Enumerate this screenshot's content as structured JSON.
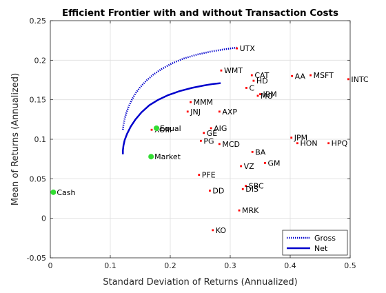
{
  "chart_data": {
    "type": "scatter",
    "title": "Efficient Frontier with and without Transaction Costs",
    "xlabel": "Standard Deviation of Returns (Annualized)",
    "ylabel": "Mean of Returns (Annualized)",
    "xlim": [
      0,
      0.5
    ],
    "ylim": [
      -0.05,
      0.25
    ],
    "x_ticks": [
      0,
      0.1,
      0.2,
      0.3,
      0.4,
      0.5
    ],
    "x_tick_labels": [
      "0",
      "0.1",
      "0.2",
      "0.3",
      "0.4",
      "0.5"
    ],
    "y_ticks": [
      -0.05,
      0,
      0.05,
      0.1,
      0.15,
      0.2,
      0.25
    ],
    "y_tick_labels": [
      "-0.05",
      "0",
      "0.05",
      "0.1",
      "0.15",
      "0.2",
      "0.25"
    ],
    "grid": true,
    "legend_position": "bottom-right",
    "colors": {
      "assets": "#ff0000",
      "special": "#33dd33",
      "frontier": "#0000cc",
      "grid": "#dedede",
      "axis": "#262626"
    },
    "frontiers": [
      {
        "name": "Gross",
        "style": "dotted",
        "points": [
          [
            0.121,
            0.112
          ],
          [
            0.122,
            0.118
          ],
          [
            0.124,
            0.126
          ],
          [
            0.127,
            0.134
          ],
          [
            0.131,
            0.142
          ],
          [
            0.136,
            0.15
          ],
          [
            0.142,
            0.158
          ],
          [
            0.15,
            0.166
          ],
          [
            0.16,
            0.174
          ],
          [
            0.172,
            0.182
          ],
          [
            0.186,
            0.189
          ],
          [
            0.203,
            0.196
          ],
          [
            0.222,
            0.202
          ],
          [
            0.244,
            0.207
          ],
          [
            0.268,
            0.211
          ],
          [
            0.292,
            0.214
          ],
          [
            0.311,
            0.216
          ]
        ]
      },
      {
        "name": "Net",
        "style": "solid",
        "points": [
          [
            0.121,
            0.081
          ],
          [
            0.121,
            0.086
          ],
          [
            0.122,
            0.092
          ],
          [
            0.124,
            0.099
          ],
          [
            0.128,
            0.107
          ],
          [
            0.134,
            0.116
          ],
          [
            0.142,
            0.125
          ],
          [
            0.152,
            0.134
          ],
          [
            0.165,
            0.143
          ],
          [
            0.18,
            0.15
          ],
          [
            0.197,
            0.156
          ],
          [
            0.216,
            0.161
          ],
          [
            0.236,
            0.165
          ],
          [
            0.256,
            0.168
          ],
          [
            0.272,
            0.17
          ],
          [
            0.284,
            0.171
          ]
        ]
      }
    ],
    "assets": [
      {
        "label": "UTX",
        "x": 0.311,
        "y": 0.215
      },
      {
        "label": "WMT",
        "x": 0.285,
        "y": 0.187
      },
      {
        "label": "CAT",
        "x": 0.336,
        "y": 0.181
      },
      {
        "label": "HD",
        "x": 0.339,
        "y": 0.174
      },
      {
        "label": "C",
        "x": 0.327,
        "y": 0.165
      },
      {
        "label": "IBM",
        "x": 0.35,
        "y": 0.157
      },
      {
        "label": "MO",
        "x": 0.346,
        "y": 0.155
      },
      {
        "label": "AA",
        "x": 0.403,
        "y": 0.18
      },
      {
        "label": "MSFT",
        "x": 0.434,
        "y": 0.181
      },
      {
        "label": "INTC",
        "x": 0.497,
        "y": 0.176
      },
      {
        "label": "MMM",
        "x": 0.234,
        "y": 0.147
      },
      {
        "label": "JNJ",
        "x": 0.229,
        "y": 0.135
      },
      {
        "label": "AXP",
        "x": 0.282,
        "y": 0.135
      },
      {
        "label": "AIG",
        "x": 0.268,
        "y": 0.114
      },
      {
        "label": "GE",
        "x": 0.256,
        "y": 0.108
      },
      {
        "label": "PG",
        "x": 0.251,
        "y": 0.098
      },
      {
        "label": "MCD",
        "x": 0.282,
        "y": 0.094
      },
      {
        "label": "JPM",
        "x": 0.402,
        "y": 0.102
      },
      {
        "label": "HON",
        "x": 0.412,
        "y": 0.095
      },
      {
        "label": "HPQ",
        "x": 0.464,
        "y": 0.095
      },
      {
        "label": "BA",
        "x": 0.337,
        "y": 0.084
      },
      {
        "label": "GM",
        "x": 0.358,
        "y": 0.07
      },
      {
        "label": "VZ",
        "x": 0.318,
        "y": 0.066
      },
      {
        "label": "PFE",
        "x": 0.248,
        "y": 0.055
      },
      {
        "label": "SBC",
        "x": 0.326,
        "y": 0.041
      },
      {
        "label": "DIS",
        "x": 0.321,
        "y": 0.037
      },
      {
        "label": "DD",
        "x": 0.266,
        "y": 0.035
      },
      {
        "label": "MRK",
        "x": 0.315,
        "y": 0.01
      },
      {
        "label": "KO",
        "x": 0.271,
        "y": -0.015
      },
      {
        "label": "XOM",
        "x": 0.169,
        "y": 0.112
      }
    ],
    "special": [
      {
        "label": "Equal",
        "x": 0.177,
        "y": 0.114
      },
      {
        "label": "Market",
        "x": 0.168,
        "y": 0.078
      },
      {
        "label": "Cash",
        "x": 0.005,
        "y": 0.033
      }
    ]
  }
}
